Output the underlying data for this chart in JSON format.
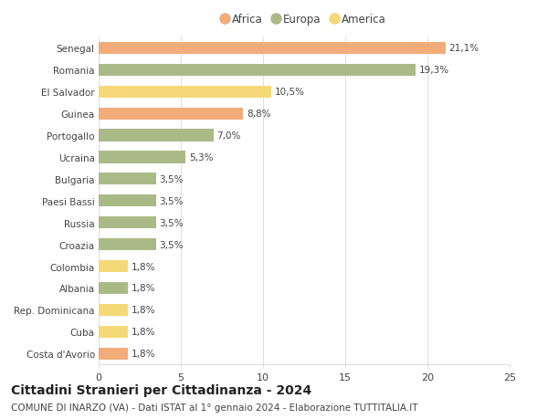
{
  "categories": [
    "Costa d'Avorio",
    "Cuba",
    "Rep. Dominicana",
    "Albania",
    "Colombia",
    "Croazia",
    "Russia",
    "Paesi Bassi",
    "Bulgaria",
    "Ucraina",
    "Portogallo",
    "Guinea",
    "El Salvador",
    "Romania",
    "Senegal"
  ],
  "values": [
    1.8,
    1.8,
    1.8,
    1.8,
    1.8,
    3.5,
    3.5,
    3.5,
    3.5,
    5.3,
    7.0,
    8.8,
    10.5,
    19.3,
    21.1
  ],
  "labels": [
    "1,8%",
    "1,8%",
    "1,8%",
    "1,8%",
    "1,8%",
    "3,5%",
    "3,5%",
    "3,5%",
    "3,5%",
    "5,3%",
    "7,0%",
    "8,8%",
    "10,5%",
    "19,3%",
    "21,1%"
  ],
  "continent": [
    "Africa",
    "America",
    "America",
    "Europa",
    "America",
    "Europa",
    "Europa",
    "Europa",
    "Europa",
    "Europa",
    "Europa",
    "Africa",
    "America",
    "Europa",
    "Africa"
  ],
  "colors": {
    "Africa": "#F2AC7A",
    "Europa": "#AABA87",
    "America": "#F5D878"
  },
  "title": "Cittadini Stranieri per Cittadinanza - 2024",
  "subtitle": "COMUNE DI INARZO (VA) - Dati ISTAT al 1° gennaio 2024 - Elaborazione TUTTITALIA.IT",
  "xlim": [
    0,
    25
  ],
  "xticks": [
    0,
    5,
    10,
    15,
    20,
    25
  ],
  "background_color": "#ffffff",
  "bar_height": 0.55,
  "label_fontsize": 7.5,
  "title_fontsize": 10,
  "subtitle_fontsize": 7.5,
  "ytick_fontsize": 7.5,
  "xtick_fontsize": 8,
  "grid_color": "#e0e0e0",
  "text_color": "#444444",
  "legend_order": [
    "Africa",
    "Europa",
    "America"
  ]
}
